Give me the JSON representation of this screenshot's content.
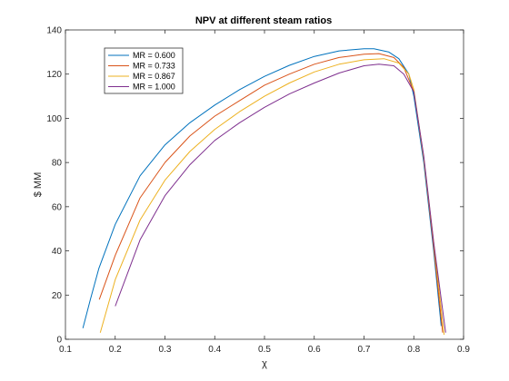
{
  "chart_data": {
    "type": "line",
    "title": "NPV at different steam ratios",
    "xlabel": "χ",
    "ylabel": "$ MM",
    "xlim": [
      0.1,
      0.9
    ],
    "ylim": [
      0,
      140
    ],
    "xticks": [
      0.1,
      0.2,
      0.3,
      0.4,
      0.5,
      0.6,
      0.7,
      0.8,
      0.9
    ],
    "yticks": [
      0,
      20,
      40,
      60,
      80,
      100,
      120,
      140
    ],
    "xtick_labels": [
      "0.1",
      "0.2",
      "0.3",
      "0.4",
      "0.5",
      "0.6",
      "0.7",
      "0.8",
      "0.9"
    ],
    "ytick_labels": [
      "0",
      "20",
      "40",
      "60",
      "80",
      "100",
      "120",
      "140"
    ],
    "grid": false,
    "legend_position": "top-left",
    "series": [
      {
        "name": "MR = 0.600",
        "color": "#0072BD",
        "x": [
          0.135,
          0.15,
          0.167,
          0.2,
          0.25,
          0.3,
          0.35,
          0.4,
          0.45,
          0.5,
          0.55,
          0.6,
          0.65,
          0.7,
          0.72,
          0.75,
          0.77,
          0.79,
          0.8,
          0.82,
          0.84,
          0.855
        ],
        "y": [
          5,
          18,
          32,
          52,
          74,
          88,
          98,
          106,
          113,
          119,
          124,
          128,
          130.5,
          131.5,
          131.5,
          130,
          127,
          120,
          110,
          80,
          40,
          6
        ]
      },
      {
        "name": "MR = 0.733",
        "color": "#D95319",
        "x": [
          0.168,
          0.2,
          0.25,
          0.3,
          0.35,
          0.4,
          0.45,
          0.5,
          0.55,
          0.6,
          0.65,
          0.7,
          0.73,
          0.76,
          0.78,
          0.8,
          0.82,
          0.84,
          0.858
        ],
        "y": [
          18,
          38,
          64,
          80,
          92,
          101,
          108,
          115,
          120,
          124.5,
          127.5,
          129,
          129.3,
          127.5,
          123,
          112,
          82,
          42,
          3
        ]
      },
      {
        "name": "MR = 0.867",
        "color": "#EDB120",
        "x": [
          0.17,
          0.2,
          0.25,
          0.3,
          0.35,
          0.4,
          0.45,
          0.5,
          0.55,
          0.6,
          0.65,
          0.7,
          0.74,
          0.77,
          0.79,
          0.8,
          0.82,
          0.84,
          0.861
        ],
        "y": [
          3,
          27,
          54,
          72,
          85,
          95,
          103,
          110,
          116,
          121,
          124.5,
          126.5,
          127,
          125,
          120,
          113,
          82,
          44,
          2
        ]
      },
      {
        "name": "MR = 1.000",
        "color": "#7E2F8E",
        "x": [
          0.2,
          0.25,
          0.3,
          0.35,
          0.4,
          0.45,
          0.5,
          0.55,
          0.6,
          0.65,
          0.7,
          0.73,
          0.76,
          0.78,
          0.8,
          0.82,
          0.84,
          0.864
        ],
        "y": [
          15,
          45,
          65,
          79,
          90,
          98,
          105,
          111,
          116,
          120.5,
          123.8,
          124.5,
          123.8,
          120,
          112,
          83,
          44,
          3
        ]
      }
    ]
  }
}
